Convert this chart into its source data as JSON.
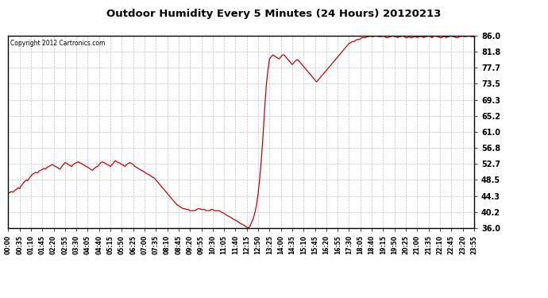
{
  "title": "Outdoor Humidity Every 5 Minutes (24 Hours) 20120213",
  "copyright_text": "Copyright 2012 Cartronics.com",
  "line_color": "#cc0000",
  "background_color": "#ffffff",
  "plot_bg_color": "#ffffff",
  "grid_color": "#bbbbbb",
  "ylim": [
    36.0,
    86.0
  ],
  "yticks": [
    36.0,
    40.2,
    44.3,
    48.5,
    52.7,
    56.8,
    61.0,
    65.2,
    69.3,
    73.5,
    77.7,
    81.8,
    86.0
  ],
  "xtick_labels": [
    "00:00",
    "00:35",
    "01:10",
    "01:45",
    "02:20",
    "02:55",
    "03:30",
    "04:05",
    "04:40",
    "05:15",
    "05:50",
    "06:25",
    "07:00",
    "07:35",
    "08:10",
    "08:45",
    "09:20",
    "09:55",
    "10:30",
    "11:05",
    "11:40",
    "12:15",
    "12:50",
    "13:25",
    "14:00",
    "14:35",
    "15:10",
    "15:45",
    "16:20",
    "16:55",
    "17:30",
    "18:05",
    "18:40",
    "19:15",
    "19:50",
    "20:25",
    "21:00",
    "21:35",
    "22:10",
    "22:45",
    "23:20",
    "23:55"
  ],
  "humidity_values": [
    45.0,
    45.2,
    45.5,
    45.3,
    45.8,
    46.0,
    46.5,
    46.2,
    47.0,
    47.5,
    48.0,
    48.5,
    48.3,
    49.0,
    49.5,
    50.0,
    50.2,
    50.5,
    50.3,
    50.8,
    51.0,
    51.2,
    51.5,
    51.3,
    51.8,
    52.0,
    52.2,
    52.5,
    52.3,
    52.0,
    51.8,
    51.5,
    51.3,
    52.0,
    52.5,
    53.0,
    52.8,
    52.5,
    52.3,
    52.0,
    52.5,
    52.8,
    53.0,
    53.2,
    53.0,
    52.8,
    52.5,
    52.3,
    52.0,
    51.8,
    51.5,
    51.2,
    51.0,
    51.5,
    51.8,
    52.0,
    52.5,
    53.0,
    53.2,
    53.0,
    52.8,
    52.5,
    52.3,
    52.0,
    52.5,
    53.0,
    53.5,
    53.2,
    53.0,
    52.8,
    52.5,
    52.3,
    52.0,
    52.5,
    52.8,
    53.0,
    52.8,
    52.5,
    52.0,
    51.8,
    51.5,
    51.3,
    51.0,
    50.8,
    50.5,
    50.2,
    50.0,
    49.8,
    49.5,
    49.2,
    49.0,
    48.5,
    48.0,
    47.5,
    47.0,
    46.5,
    46.0,
    45.5,
    45.0,
    44.5,
    44.0,
    43.5,
    43.0,
    42.5,
    42.0,
    41.8,
    41.5,
    41.2,
    41.0,
    41.0,
    40.8,
    40.8,
    40.5,
    40.5,
    40.5,
    40.5,
    40.8,
    41.0,
    41.0,
    40.8,
    40.8,
    40.8,
    40.5,
    40.5,
    40.5,
    40.8,
    40.8,
    40.5,
    40.5,
    40.5,
    40.5,
    40.2,
    40.0,
    39.8,
    39.5,
    39.2,
    39.0,
    38.8,
    38.5,
    38.2,
    38.0,
    37.8,
    37.5,
    37.2,
    37.0,
    36.8,
    36.5,
    36.2,
    36.0,
    36.5,
    37.5,
    38.5,
    40.0,
    42.0,
    45.0,
    49.0,
    54.0,
    60.0,
    67.0,
    73.0,
    77.0,
    80.0,
    80.5,
    81.0,
    80.8,
    80.5,
    80.2,
    80.0,
    80.5,
    81.0,
    81.0,
    80.5,
    80.0,
    79.5,
    79.0,
    78.5,
    79.0,
    79.5,
    79.8,
    79.5,
    79.0,
    78.5,
    78.0,
    77.5,
    77.0,
    76.5,
    76.0,
    75.5,
    75.0,
    74.5,
    74.0,
    74.5,
    75.0,
    75.5,
    76.0,
    76.5,
    77.0,
    77.5,
    78.0,
    78.5,
    79.0,
    79.5,
    80.0,
    80.5,
    81.0,
    81.5,
    82.0,
    82.5,
    83.0,
    83.5,
    84.0,
    84.2,
    84.5,
    84.5,
    84.8,
    85.0,
    85.0,
    85.2,
    85.5,
    85.5,
    85.5,
    85.8,
    85.8,
    86.0,
    85.8,
    85.8,
    86.0,
    86.0,
    85.8,
    85.8,
    85.8,
    86.0,
    85.8,
    85.5,
    85.5,
    85.8,
    85.8,
    86.0,
    85.8,
    85.8,
    85.5,
    85.8,
    85.8,
    86.0,
    85.8,
    85.5,
    85.5,
    85.8,
    85.5,
    85.5,
    85.8,
    85.8,
    85.5,
    85.8,
    85.8,
    85.8,
    85.5,
    85.8,
    85.8,
    86.0,
    85.8,
    85.5,
    85.8,
    86.0,
    85.8,
    85.8,
    85.5,
    85.5,
    85.8,
    85.8,
    85.5,
    85.8,
    85.8,
    86.0,
    85.8,
    85.8,
    85.5,
    85.5,
    85.8,
    85.8,
    86.0,
    85.8,
    85.8,
    86.0,
    86.0,
    85.8,
    85.8,
    85.8
  ]
}
